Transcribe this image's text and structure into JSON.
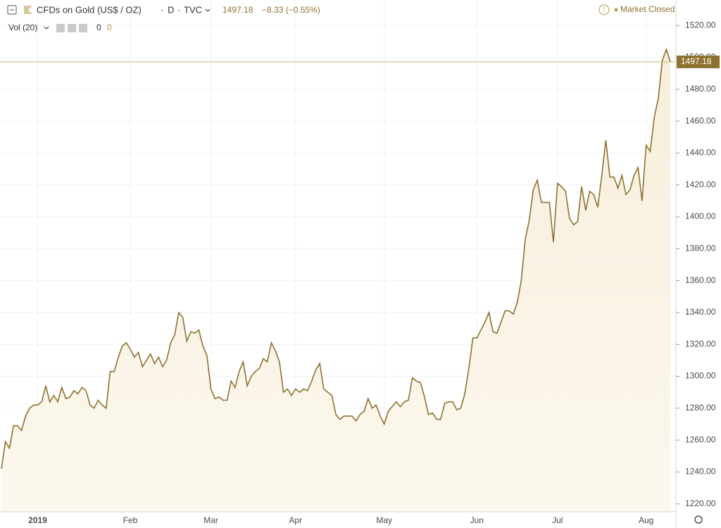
{
  "header": {
    "title": "CFDs on Gold (US$ / OZ)",
    "interval": "D",
    "source": "TVC",
    "change_label": "−8.33 (−0.55%)",
    "status": "Market Closed",
    "volume_label": "Vol (20)",
    "volume_values": [
      "0",
      "0"
    ]
  },
  "chart_data": {
    "type": "area",
    "categories": [
      null,
      null,
      null,
      null,
      null,
      null,
      null,
      null,
      null,
      "2019",
      null,
      null,
      null,
      null,
      null,
      null,
      null,
      null,
      null,
      null,
      null,
      null,
      null,
      null,
      null,
      null,
      null,
      null,
      null,
      null,
      null,
      null,
      "Feb",
      null,
      null,
      null,
      null,
      null,
      null,
      null,
      null,
      null,
      null,
      null,
      null,
      null,
      null,
      null,
      null,
      null,
      null,
      null,
      "Mar",
      null,
      null,
      null,
      null,
      null,
      null,
      null,
      null,
      null,
      null,
      null,
      null,
      null,
      null,
      null,
      null,
      null,
      null,
      null,
      null,
      "Apr",
      null,
      null,
      null,
      null,
      null,
      null,
      null,
      null,
      null,
      null,
      null,
      null,
      null,
      null,
      null,
      null,
      null,
      null,
      null,
      null,
      null,
      "May",
      null,
      null,
      null,
      null,
      null,
      null,
      null,
      null,
      null,
      null,
      null,
      null,
      null,
      null,
      null,
      null,
      null,
      null,
      null,
      null,
      null,
      null,
      "Jun",
      null,
      null,
      null,
      null,
      null,
      null,
      null,
      null,
      null,
      null,
      null,
      null,
      null,
      null,
      null,
      null,
      null,
      null,
      null,
      "Jul",
      null,
      null,
      null,
      null,
      null,
      null,
      null,
      null,
      null,
      null,
      null,
      null,
      null,
      null,
      null,
      null,
      null,
      null,
      null,
      null,
      null,
      "Aug",
      null,
      null,
      null,
      null,
      null,
      null
    ],
    "series": [
      {
        "name": "CFDs on Gold (US$ / OZ)",
        "color": "#8f7130",
        "values": [
          1242,
          1259,
          1255,
          1269,
          1269,
          1266,
          1275,
          1280,
          1282,
          1282,
          1284,
          1294,
          1284,
          1288,
          1284,
          1293,
          1286,
          1287,
          1291,
          1289,
          1293,
          1291,
          1282,
          1280,
          1285,
          1282,
          1280,
          1303,
          1303,
          1312,
          1319,
          1321,
          1317,
          1312,
          1315,
          1306,
          1310,
          1314,
          1308,
          1312,
          1306,
          1310,
          1321,
          1326,
          1340,
          1337,
          1322,
          1328,
          1327,
          1329,
          1319,
          1313,
          1292,
          1286,
          1287,
          1285,
          1285,
          1297,
          1293,
          1303,
          1309,
          1294,
          1300,
          1303,
          1305,
          1311,
          1309,
          1321,
          1316,
          1309,
          1290,
          1292,
          1288,
          1292,
          1290,
          1292,
          1291,
          1297,
          1304,
          1308,
          1292,
          1290,
          1288,
          1276,
          1273,
          1275,
          1275,
          1275,
          1272,
          1276,
          1278,
          1286,
          1280,
          1282,
          1275,
          1270,
          1278,
          1281,
          1284,
          1281,
          1284,
          1285,
          1299,
          1297,
          1296,
          1287,
          1276,
          1277,
          1273,
          1273,
          1283,
          1284,
          1284,
          1279,
          1280,
          1289,
          1305,
          1324,
          1324,
          1329,
          1334,
          1340,
          1328,
          1327,
          1334,
          1341,
          1341,
          1339,
          1346,
          1360,
          1386,
          1398,
          1417,
          1423,
          1409,
          1409,
          1409,
          1384,
          1421,
          1419,
          1416,
          1399,
          1395,
          1397,
          1419,
          1404,
          1416,
          1414,
          1406,
          1426,
          1448,
          1425,
          1425,
          1418,
          1426,
          1414,
          1417,
          1426,
          1431,
          1410,
          1445,
          1441,
          1462,
          1474,
          1498,
          1505,
          1497.18
        ]
      }
    ],
    "ylim": [
      1215,
      1536
    ],
    "yticks": [
      {
        "value": 1220,
        "label": "1220.00"
      },
      {
        "value": 1240,
        "label": "1240.00"
      },
      {
        "value": 1260,
        "label": "1260.00"
      },
      {
        "value": 1280,
        "label": "1280.00"
      },
      {
        "value": 1300,
        "label": "1300.00"
      },
      {
        "value": 1320,
        "label": "1320.00"
      },
      {
        "value": 1340,
        "label": "1340.00"
      },
      {
        "value": 1360,
        "label": "1360.00"
      },
      {
        "value": 1380,
        "label": "1380.00"
      },
      {
        "value": 1400,
        "label": "1400.00"
      },
      {
        "value": 1420,
        "label": "1420.00"
      },
      {
        "value": 1440,
        "label": "1440.00"
      },
      {
        "value": 1460,
        "label": "1460.00"
      },
      {
        "value": 1480,
        "label": "1480.00"
      },
      {
        "value": 1500,
        "label": "1500.00"
      },
      {
        "value": 1520,
        "label": "1520.00"
      }
    ],
    "grid": true
  }
}
